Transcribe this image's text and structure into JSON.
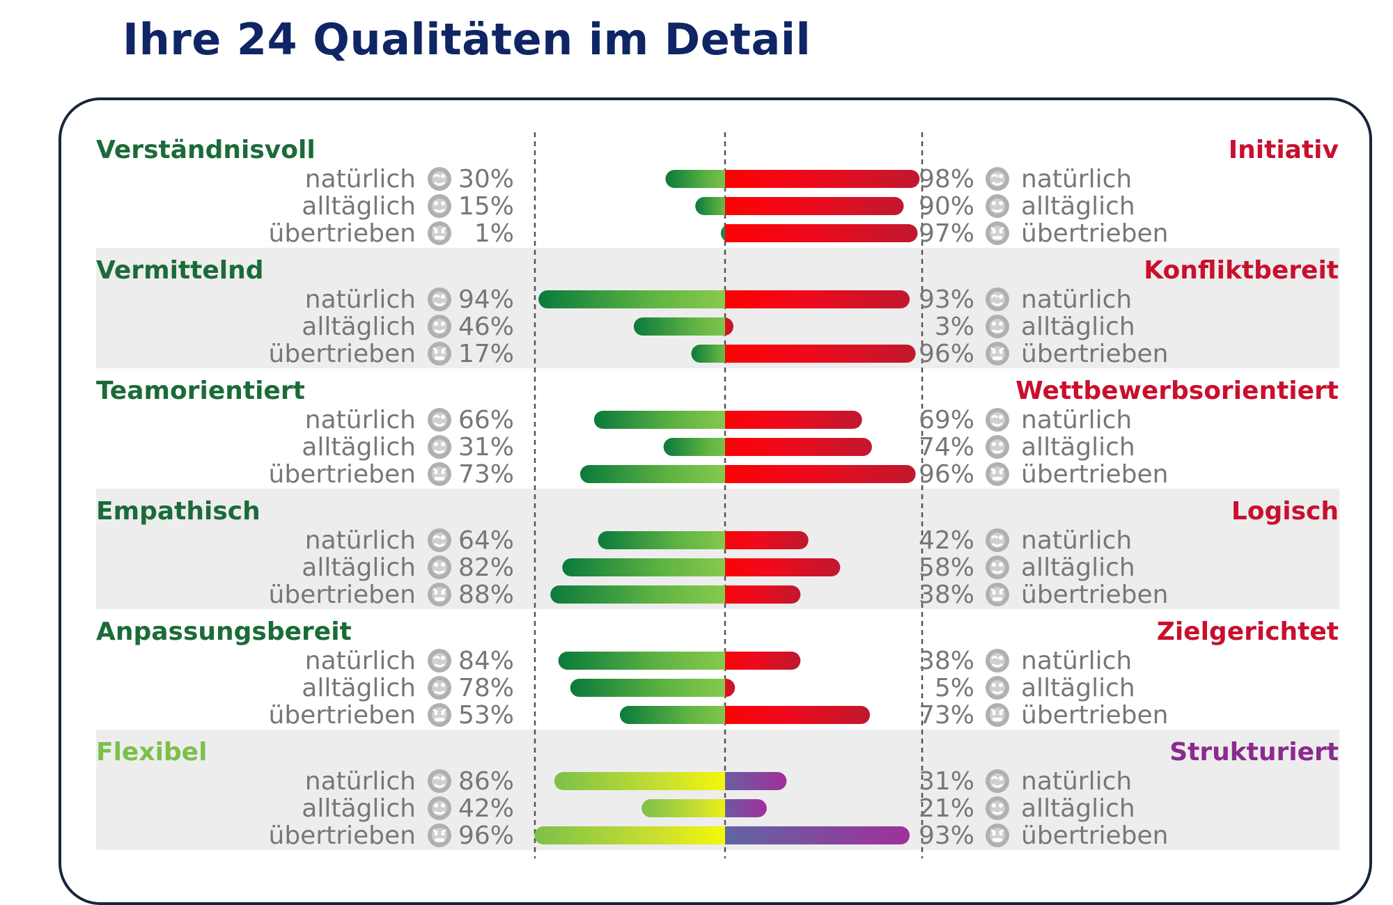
{
  "title": "Ihre 24 Qualitäten im Detail",
  "colors": {
    "title": "#0f2565",
    "left_heading": "#1b6b38",
    "right_heading": "#c8102e",
    "flex_heading": "#7cc04a",
    "struct_heading": "#8b2a8f",
    "row_label": "#777777",
    "band": "#ededed"
  },
  "icons": [
    "winking-face-icon",
    "neutral-face-icon",
    "angry-face-icon"
  ],
  "chart_data": {
    "type": "bar",
    "orientation": "horizontal-diverging",
    "xlim": [
      0,
      100
    ],
    "series_labels": [
      "natürlich",
      "alltäglich",
      "übertrieben"
    ],
    "pairs": [
      {
        "left": "Verständnisvoll",
        "right": "Initiativ",
        "left_values": [
          30,
          15,
          1
        ],
        "right_values": [
          98,
          90,
          97
        ],
        "left_style": "green",
        "right_style": "red",
        "band": false
      },
      {
        "left": "Vermittelnd",
        "right": "Konfliktbereit",
        "left_values": [
          94,
          46,
          17
        ],
        "right_values": [
          93,
          3,
          96
        ],
        "left_style": "green",
        "right_style": "red",
        "band": true
      },
      {
        "left": "Teamorientiert",
        "right": "Wettbewerbsorientiert",
        "left_values": [
          66,
          31,
          73
        ],
        "right_values": [
          69,
          74,
          96
        ],
        "left_style": "green",
        "right_style": "red",
        "band": false
      },
      {
        "left": "Empathisch",
        "right": "Logisch",
        "left_values": [
          64,
          82,
          88
        ],
        "right_values": [
          42,
          58,
          38
        ],
        "left_style": "green",
        "right_style": "red",
        "band": true
      },
      {
        "left": "Anpassungsbereit",
        "right": "Zielgerichtet",
        "left_values": [
          84,
          78,
          53
        ],
        "right_values": [
          38,
          5,
          73
        ],
        "left_style": "green",
        "right_style": "red",
        "band": false
      },
      {
        "left": "Flexibel",
        "right": "Strukturiert",
        "left_values": [
          86,
          42,
          96
        ],
        "right_values": [
          31,
          21,
          93
        ],
        "left_style": "yellowgreen",
        "right_style": "purple",
        "band": true
      }
    ]
  }
}
